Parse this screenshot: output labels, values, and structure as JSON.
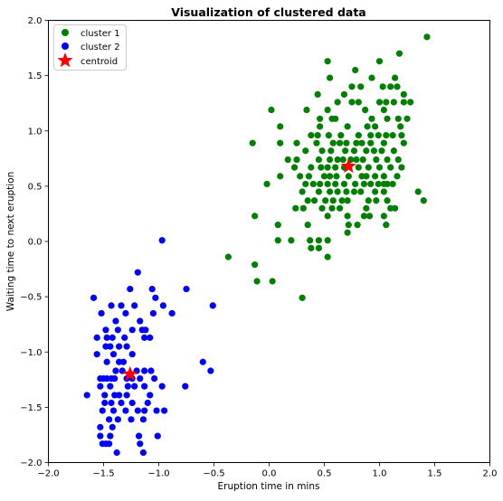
{
  "chart_data": {
    "type": "scatter",
    "title": "Visualization of clustered data",
    "xlabel": "Eruption time in mins",
    "ylabel": "Waiting time to next eruption",
    "xlim": [
      -2.0,
      2.0
    ],
    "ylim": [
      -2.0,
      2.0
    ],
    "xticks": [
      -2.0,
      -1.5,
      -1.0,
      -0.5,
      0.0,
      0.5,
      1.0,
      1.5,
      2.0
    ],
    "yticks": [
      -2.0,
      -1.5,
      -1.0,
      -0.5,
      0.0,
      0.5,
      1.0,
      1.5,
      2.0
    ],
    "xtick_labels": [
      "−2.0",
      "−1.5",
      "−1.0",
      "−0.5",
      "0.0",
      "0.5",
      "1.0",
      "1.5",
      "2.0"
    ],
    "ytick_labels": [
      "−2.0",
      "−1.5",
      "−1.0",
      "−0.5",
      "0.0",
      "0.5",
      "1.0",
      "1.5",
      "2.0"
    ],
    "grid": false,
    "legend_position": "top-left",
    "series": [
      {
        "name": "cluster 1",
        "color": "#008000",
        "marker": "circle",
        "points": [
          [
            1.43,
            1.85
          ],
          [
            1.18,
            1.7
          ],
          [
            0.53,
            1.63
          ],
          [
            1.0,
            1.63
          ],
          [
            0.78,
            1.55
          ],
          [
            0.55,
            1.48
          ],
          [
            0.93,
            1.48
          ],
          [
            1.14,
            1.48
          ],
          [
            0.75,
            1.4
          ],
          [
            0.83,
            1.4
          ],
          [
            1.03,
            1.4
          ],
          [
            1.1,
            1.4
          ],
          [
            1.16,
            1.4
          ],
          [
            0.44,
            1.33
          ],
          [
            0.68,
            1.33
          ],
          [
            1.22,
            1.33
          ],
          [
            1.28,
            1.26
          ],
          [
            0.81,
            1.26
          ],
          [
            0.75,
            1.26
          ],
          [
            0.62,
            1.26
          ],
          [
            1.0,
            1.26
          ],
          [
            1.06,
            1.26
          ],
          [
            1.13,
            1.26
          ],
          [
            1.22,
            1.26
          ],
          [
            0.02,
            1.19
          ],
          [
            0.34,
            1.19
          ],
          [
            0.53,
            1.19
          ],
          [
            0.87,
            1.19
          ],
          [
            1.04,
            1.19
          ],
          [
            1.07,
            1.11
          ],
          [
            1.17,
            1.11
          ],
          [
            1.25,
            1.11
          ],
          [
            0.46,
            1.11
          ],
          [
            0.57,
            1.11
          ],
          [
            0.6,
            1.11
          ],
          [
            0.93,
            1.11
          ],
          [
            0.1,
            1.04
          ],
          [
            0.46,
            1.04
          ],
          [
            0.71,
            1.04
          ],
          [
            0.89,
            1.04
          ],
          [
            0.96,
            1.04
          ],
          [
            1.19,
            1.04
          ],
          [
            0.38,
            0.96
          ],
          [
            0.44,
            0.96
          ],
          [
            0.54,
            0.96
          ],
          [
            0.65,
            0.96
          ],
          [
            0.81,
            0.96
          ],
          [
            0.92,
            0.96
          ],
          [
            0.99,
            0.96
          ],
          [
            1.06,
            0.96
          ],
          [
            1.12,
            0.96
          ],
          [
            1.2,
            0.96
          ],
          [
            -0.15,
            0.89
          ],
          [
            0.1,
            0.89
          ],
          [
            0.25,
            0.89
          ],
          [
            0.43,
            0.89
          ],
          [
            0.58,
            0.89
          ],
          [
            0.64,
            0.89
          ],
          [
            0.7,
            0.89
          ],
          [
            0.79,
            0.89
          ],
          [
            0.84,
            0.89
          ],
          [
            0.92,
            0.89
          ],
          [
            1.04,
            0.89
          ],
          [
            1.22,
            0.89
          ],
          [
            0.33,
            0.82
          ],
          [
            0.48,
            0.82
          ],
          [
            0.56,
            0.82
          ],
          [
            0.69,
            0.82
          ],
          [
            0.77,
            0.82
          ],
          [
            0.88,
            0.82
          ],
          [
            0.95,
            0.82
          ],
          [
            1.02,
            0.82
          ],
          [
            1.13,
            0.82
          ],
          [
            0.17,
            0.74
          ],
          [
            0.25,
            0.74
          ],
          [
            0.45,
            0.74
          ],
          [
            0.55,
            0.74
          ],
          [
            0.62,
            0.74
          ],
          [
            0.67,
            0.74
          ],
          [
            0.74,
            0.74
          ],
          [
            0.79,
            0.74
          ],
          [
            0.85,
            0.74
          ],
          [
            0.97,
            0.74
          ],
          [
            1.07,
            0.74
          ],
          [
            1.17,
            0.74
          ],
          [
            0.23,
            0.67
          ],
          [
            0.38,
            0.67
          ],
          [
            0.47,
            0.67
          ],
          [
            0.53,
            0.67
          ],
          [
            0.6,
            0.67
          ],
          [
            0.68,
            0.67
          ],
          [
            0.81,
            0.67
          ],
          [
            0.9,
            0.67
          ],
          [
            1.0,
            0.67
          ],
          [
            1.1,
            0.67
          ],
          [
            1.2,
            0.67
          ],
          [
            0.1,
            0.59
          ],
          [
            0.28,
            0.59
          ],
          [
            0.36,
            0.59
          ],
          [
            0.5,
            0.59
          ],
          [
            0.55,
            0.59
          ],
          [
            0.61,
            0.59
          ],
          [
            0.72,
            0.59
          ],
          [
            0.84,
            0.59
          ],
          [
            0.88,
            0.59
          ],
          [
            0.96,
            0.59
          ],
          [
            1.04,
            0.59
          ],
          [
            1.16,
            0.59
          ],
          [
            -0.02,
            0.52
          ],
          [
            0.33,
            0.52
          ],
          [
            0.4,
            0.52
          ],
          [
            0.46,
            0.52
          ],
          [
            0.53,
            0.52
          ],
          [
            0.6,
            0.52
          ],
          [
            0.68,
            0.52
          ],
          [
            0.78,
            0.52
          ],
          [
            0.86,
            0.52
          ],
          [
            0.92,
            0.52
          ],
          [
            0.99,
            0.52
          ],
          [
            1.04,
            0.52
          ],
          [
            1.07,
            0.52
          ],
          [
            1.12,
            0.52
          ],
          [
            0.3,
            0.45
          ],
          [
            0.45,
            0.45
          ],
          [
            0.55,
            0.45
          ],
          [
            0.62,
            0.45
          ],
          [
            0.7,
            0.45
          ],
          [
            0.77,
            0.45
          ],
          [
            0.83,
            0.45
          ],
          [
            0.96,
            0.45
          ],
          [
            1.04,
            0.45
          ],
          [
            1.35,
            0.45
          ],
          [
            0.35,
            0.37
          ],
          [
            0.41,
            0.37
          ],
          [
            0.51,
            0.37
          ],
          [
            0.58,
            0.37
          ],
          [
            0.66,
            0.37
          ],
          [
            0.71,
            0.37
          ],
          [
            0.9,
            0.37
          ],
          [
            0.97,
            0.37
          ],
          [
            1.07,
            0.37
          ],
          [
            1.4,
            0.37
          ],
          [
            0.24,
            0.3
          ],
          [
            0.31,
            0.3
          ],
          [
            0.48,
            0.3
          ],
          [
            0.57,
            0.3
          ],
          [
            0.64,
            0.3
          ],
          [
            0.88,
            0.3
          ],
          [
            1.1,
            0.3
          ],
          [
            1.14,
            0.3
          ],
          [
            -0.13,
            0.23
          ],
          [
            0.53,
            0.23
          ],
          [
            0.71,
            0.23
          ],
          [
            0.86,
            0.23
          ],
          [
            0.91,
            0.23
          ],
          [
            1.04,
            0.23
          ],
          [
            0.08,
            0.15
          ],
          [
            0.35,
            0.15
          ],
          [
            0.72,
            0.15
          ],
          [
            0.8,
            0.15
          ],
          [
            1.06,
            0.15
          ],
          [
            0.71,
            0.08
          ],
          [
            0.08,
            0.01
          ],
          [
            0.2,
            0.01
          ],
          [
            0.37,
            0.01
          ],
          [
            0.45,
            0.01
          ],
          [
            0.53,
            0.01
          ],
          [
            0.38,
            -0.06
          ],
          [
            0.45,
            -0.06
          ],
          [
            -0.37,
            -0.14
          ],
          [
            0.53,
            -0.14
          ],
          [
            -0.13,
            -0.21
          ],
          [
            -0.11,
            -0.36
          ],
          [
            0.03,
            -0.36
          ],
          [
            0.3,
            -0.51
          ]
        ]
      },
      {
        "name": "cluster 2",
        "color": "#0000ff",
        "marker": "circle",
        "points": [
          [
            -0.97,
            0.01
          ],
          [
            -1.19,
            -0.28
          ],
          [
            -1.06,
            -0.43
          ],
          [
            -1.26,
            -0.43
          ],
          [
            -0.75,
            -0.43
          ],
          [
            -1.59,
            -0.51
          ],
          [
            -1.03,
            -0.51
          ],
          [
            -1.43,
            -0.58
          ],
          [
            -1.34,
            -0.58
          ],
          [
            -1.22,
            -0.58
          ],
          [
            -0.96,
            -0.58
          ],
          [
            -0.51,
            -0.58
          ],
          [
            -1.52,
            -0.65
          ],
          [
            -1.3,
            -0.65
          ],
          [
            -1.05,
            -0.65
          ],
          [
            -0.88,
            -0.65
          ],
          [
            -1.39,
            -0.72
          ],
          [
            -1.17,
            -0.72
          ],
          [
            -1.48,
            -0.8
          ],
          [
            -1.37,
            -0.8
          ],
          [
            -1.24,
            -0.8
          ],
          [
            -1.12,
            -0.8
          ],
          [
            -1.15,
            -0.8
          ],
          [
            -1.56,
            -0.87
          ],
          [
            -1.47,
            -0.87
          ],
          [
            -1.42,
            -0.87
          ],
          [
            -1.31,
            -0.87
          ],
          [
            -1.13,
            -0.87
          ],
          [
            -1.08,
            -0.87
          ],
          [
            -1.48,
            -0.95
          ],
          [
            -1.44,
            -0.95
          ],
          [
            -1.36,
            -0.95
          ],
          [
            -1.29,
            -0.95
          ],
          [
            -1.56,
            -1.02
          ],
          [
            -1.41,
            -1.02
          ],
          [
            -1.24,
            -1.02
          ],
          [
            -1.47,
            -1.09
          ],
          [
            -1.36,
            -1.09
          ],
          [
            -1.32,
            -1.09
          ],
          [
            -0.6,
            -1.09
          ],
          [
            -1.39,
            -1.17
          ],
          [
            -1.33,
            -1.17
          ],
          [
            -1.2,
            -1.17
          ],
          [
            -1.13,
            -1.17
          ],
          [
            -1.07,
            -1.17
          ],
          [
            -0.53,
            -1.17
          ],
          [
            -1.53,
            -1.24
          ],
          [
            -1.5,
            -1.24
          ],
          [
            -1.47,
            -1.24
          ],
          [
            -1.43,
            -1.24
          ],
          [
            -1.4,
            -1.24
          ],
          [
            -1.29,
            -1.24
          ],
          [
            -1.24,
            -1.24
          ],
          [
            -1.17,
            -1.24
          ],
          [
            -1.04,
            -1.24
          ],
          [
            -1.53,
            -1.31
          ],
          [
            -1.44,
            -1.31
          ],
          [
            -1.28,
            -1.31
          ],
          [
            -1.22,
            -1.31
          ],
          [
            -1.13,
            -1.31
          ],
          [
            -0.97,
            -1.31
          ],
          [
            -0.76,
            -1.31
          ],
          [
            -1.65,
            -1.39
          ],
          [
            -1.49,
            -1.39
          ],
          [
            -1.4,
            -1.39
          ],
          [
            -1.36,
            -1.39
          ],
          [
            -1.29,
            -1.39
          ],
          [
            -1.08,
            -1.39
          ],
          [
            -1.49,
            -1.46
          ],
          [
            -1.43,
            -1.46
          ],
          [
            -1.34,
            -1.46
          ],
          [
            -1.24,
            -1.46
          ],
          [
            -1.1,
            -1.46
          ],
          [
            -1.51,
            -1.53
          ],
          [
            -1.41,
            -1.53
          ],
          [
            -1.3,
            -1.53
          ],
          [
            -1.19,
            -1.53
          ],
          [
            -1.13,
            -1.53
          ],
          [
            -1.02,
            -1.53
          ],
          [
            -0.95,
            -1.53
          ],
          [
            -1.45,
            -1.61
          ],
          [
            -1.37,
            -1.61
          ],
          [
            -1.25,
            -1.61
          ],
          [
            -1.14,
            -1.61
          ],
          [
            -1.42,
            -1.68
          ],
          [
            -1.53,
            -1.68
          ],
          [
            -1.44,
            -1.76
          ],
          [
            -1.53,
            -1.76
          ],
          [
            -1.18,
            -1.76
          ],
          [
            -1.01,
            -1.76
          ],
          [
            -1.51,
            -1.83
          ],
          [
            -1.45,
            -1.83
          ],
          [
            -1.48,
            -1.83
          ],
          [
            -1.17,
            -1.83
          ],
          [
            -1.38,
            -1.91
          ],
          [
            -1.14,
            -1.91
          ]
        ]
      },
      {
        "name": "centroid",
        "color": "#ff0000",
        "marker": "star",
        "points": [
          [
            0.72,
            0.68
          ],
          [
            -1.26,
            -1.2
          ]
        ]
      }
    ]
  }
}
